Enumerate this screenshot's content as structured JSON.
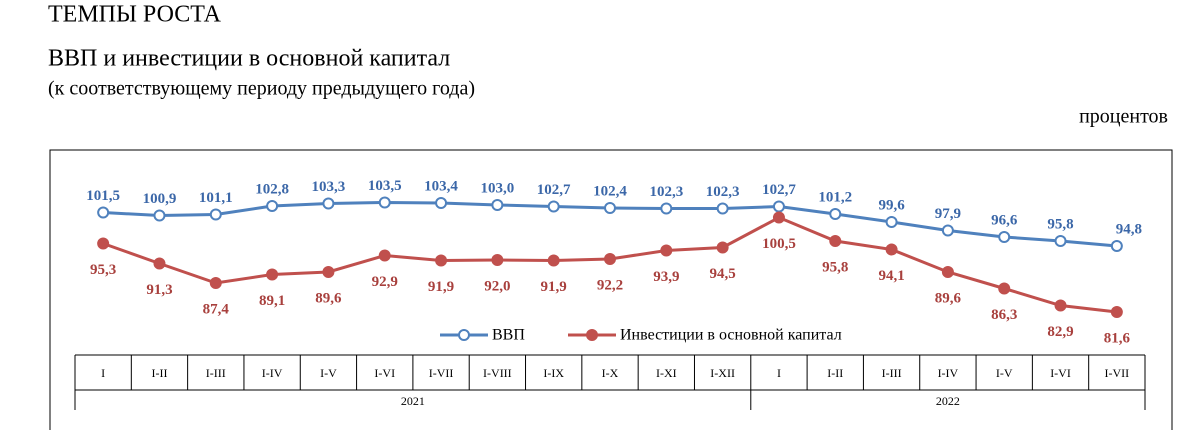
{
  "chart_data": {
    "type": "line",
    "title": "ТЕМПЫ РОСТА",
    "subtitle": "ВВП и инвестиции в основной капитал",
    "note": "(к соответствующему периоду предыдущего года)",
    "unit_label": "процентов",
    "categories": [
      "I",
      "I-II",
      "I-III",
      "I-IV",
      "I-V",
      "I-VI",
      "I-VII",
      "I-VIII",
      "I-IX",
      "I-X",
      "I-XI",
      "I-XII",
      "I",
      "I-II",
      "I-III",
      "I-IV",
      "I-V",
      "I-VI",
      "I-VII"
    ],
    "years": [
      "2021",
      "2022"
    ],
    "ylim": [
      73,
      114
    ],
    "series": [
      {
        "name": "ВВП",
        "color": "#4f81bd",
        "label_color": "#3b67a8",
        "values": [
          101.5,
          100.9,
          101.1,
          102.8,
          103.3,
          103.5,
          103.4,
          103.0,
          102.7,
          102.4,
          102.3,
          102.3,
          102.7,
          101.2,
          99.6,
          97.9,
          96.6,
          95.8,
          94.8
        ],
        "value_labels": [
          "101,5",
          "100,9",
          "101,1",
          "102,8",
          "103,3",
          "103,5",
          "103,4",
          "103,0",
          "102,7",
          "102,4",
          "102,3",
          "102,3",
          "102,7",
          "101,2",
          "99,6",
          "97,9",
          "96,6",
          "95,8",
          "94,8"
        ]
      },
      {
        "name": "Инвестиции в основной капитал",
        "color": "#c0504d",
        "label_color": "#a8403d",
        "values": [
          95.3,
          91.3,
          87.4,
          89.1,
          89.6,
          92.9,
          91.9,
          92.0,
          91.9,
          92.2,
          93.9,
          94.5,
          100.5,
          95.8,
          94.1,
          89.6,
          86.3,
          82.9,
          81.6
        ],
        "value_labels": [
          "95,3",
          "91,3",
          "87,4",
          "89,1",
          "89,6",
          "92,9",
          "91,9",
          "92,0",
          "91,9",
          "92,2",
          "93,9",
          "94,5",
          "100,5",
          "95,8",
          "94,1",
          "89,6",
          "86,3",
          "82,9",
          "81,6"
        ]
      }
    ]
  }
}
